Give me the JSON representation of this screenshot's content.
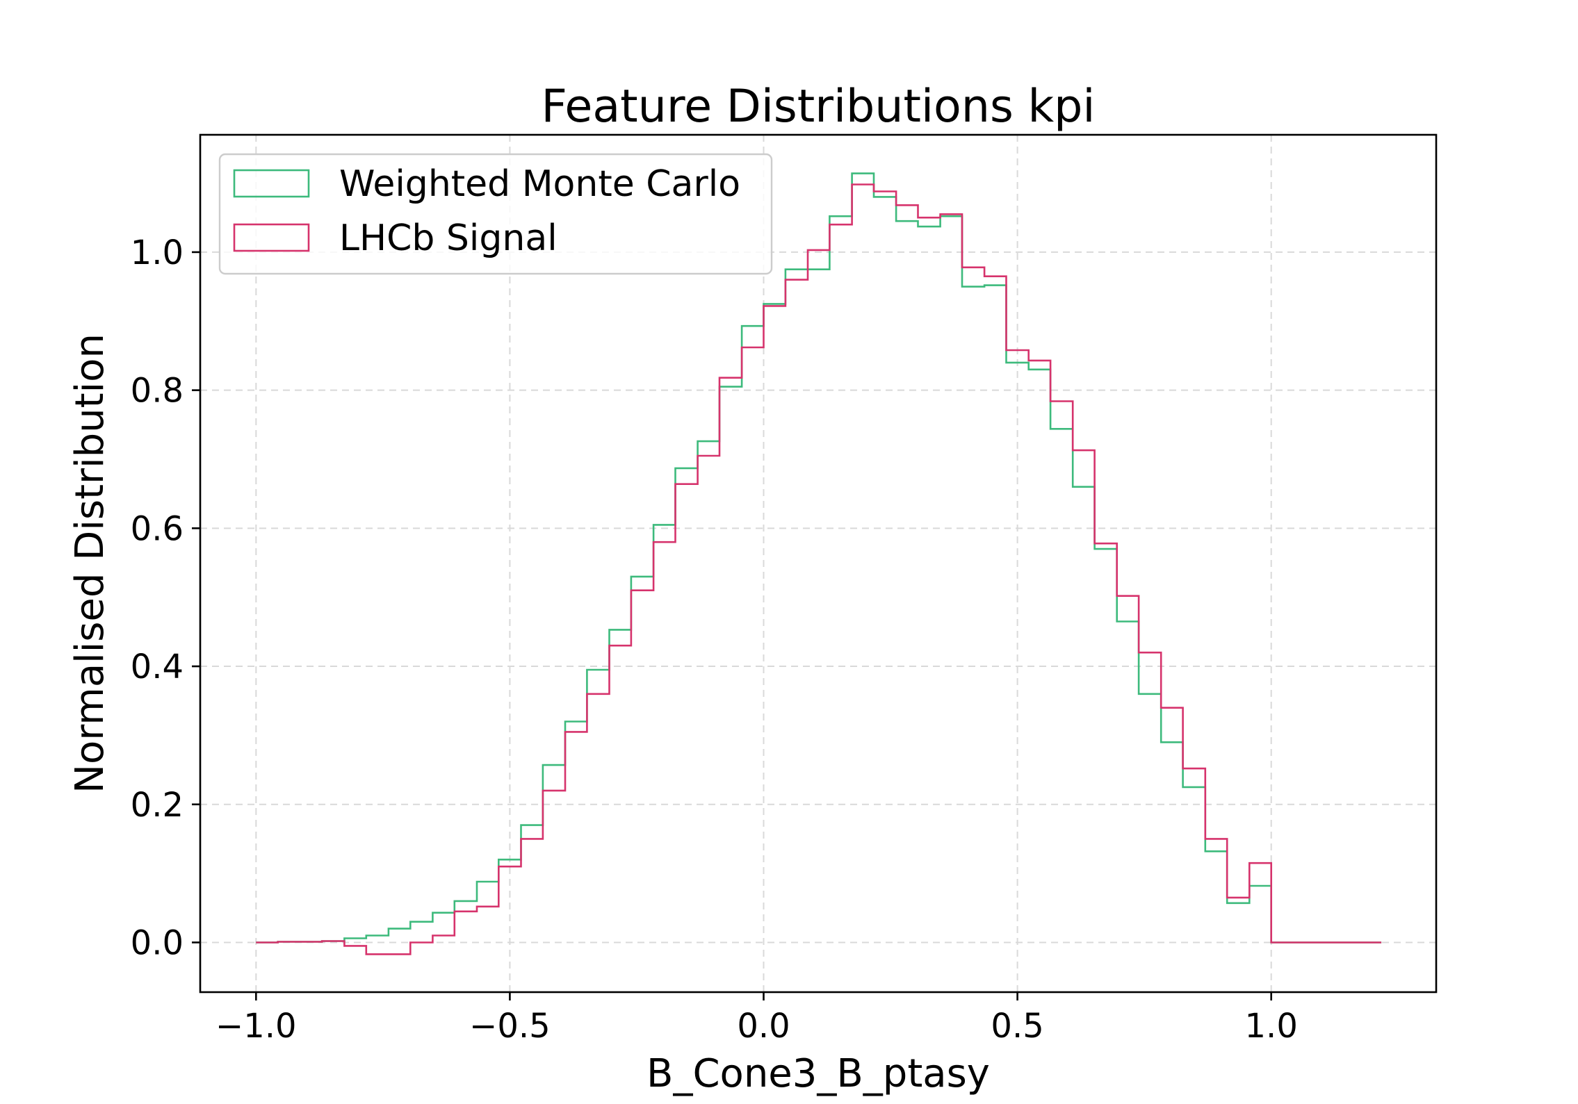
{
  "chart_data": {
    "type": "step",
    "title": "Feature Distributions kpi",
    "xlabel": "B_Cone3_B_ptasy",
    "ylabel": "Normalised Distribution",
    "xlim": [
      -1.11,
      1.325
    ],
    "ylim": [
      -0.072,
      1.17
    ],
    "xticks": [
      -1.0,
      -0.5,
      0.0,
      0.5,
      1.0
    ],
    "xtick_labels": [
      "−1.0",
      "−0.5",
      "0.0",
      "0.5",
      "1.0"
    ],
    "yticks": [
      0.0,
      0.2,
      0.4,
      0.6,
      0.8,
      1.0
    ],
    "ytick_labels": [
      "0.0",
      "0.2",
      "0.4",
      "0.6",
      "0.8",
      "1.0"
    ],
    "grid": true,
    "legend_position": "upper-left",
    "bin_edges": [
      -1.0,
      -0.957,
      -0.913,
      -0.87,
      -0.826,
      -0.783,
      -0.739,
      -0.696,
      -0.652,
      -0.609,
      -0.565,
      -0.522,
      -0.478,
      -0.435,
      -0.391,
      -0.348,
      -0.304,
      -0.261,
      -0.217,
      -0.174,
      -0.13,
      -0.087,
      -0.043,
      0.0,
      0.043,
      0.087,
      0.13,
      0.174,
      0.217,
      0.261,
      0.304,
      0.348,
      0.391,
      0.435,
      0.478,
      0.522,
      0.565,
      0.609,
      0.652,
      0.696,
      0.739,
      0.783,
      0.826,
      0.87,
      0.913,
      0.957,
      1.0,
      1.043,
      1.087,
      1.13,
      1.174,
      1.217
    ],
    "series": [
      {
        "name": "Weighted Monte Carlo",
        "color": "#3dba7c",
        "values": [
          0.0,
          0.001,
          0.001,
          0.002,
          0.006,
          0.01,
          0.02,
          0.03,
          0.043,
          0.06,
          0.088,
          0.12,
          0.17,
          0.257,
          0.32,
          0.395,
          0.453,
          0.53,
          0.605,
          0.687,
          0.726,
          0.805,
          0.893,
          0.925,
          0.975,
          0.975,
          1.052,
          1.114,
          1.08,
          1.045,
          1.037,
          1.052,
          0.95,
          0.952,
          0.84,
          0.83,
          0.744,
          0.66,
          0.57,
          0.465,
          0.36,
          0.29,
          0.225,
          0.132,
          0.057,
          0.082,
          0.0,
          0.0,
          0.0,
          0.0,
          0.0
        ]
      },
      {
        "name": "LHCb Signal",
        "color": "#d6336c",
        "values": [
          0.0,
          0.001,
          0.001,
          0.002,
          -0.005,
          -0.017,
          -0.017,
          0.0,
          0.01,
          0.045,
          0.052,
          0.11,
          0.15,
          0.22,
          0.305,
          0.36,
          0.43,
          0.51,
          0.58,
          0.664,
          0.705,
          0.818,
          0.862,
          0.922,
          0.96,
          1.003,
          1.04,
          1.098,
          1.088,
          1.068,
          1.05,
          1.055,
          0.978,
          0.965,
          0.858,
          0.843,
          0.784,
          0.713,
          0.578,
          0.502,
          0.42,
          0.34,
          0.252,
          0.15,
          0.065,
          0.115,
          0.0,
          0.0,
          0.0,
          0.0,
          0.0
        ]
      }
    ]
  }
}
